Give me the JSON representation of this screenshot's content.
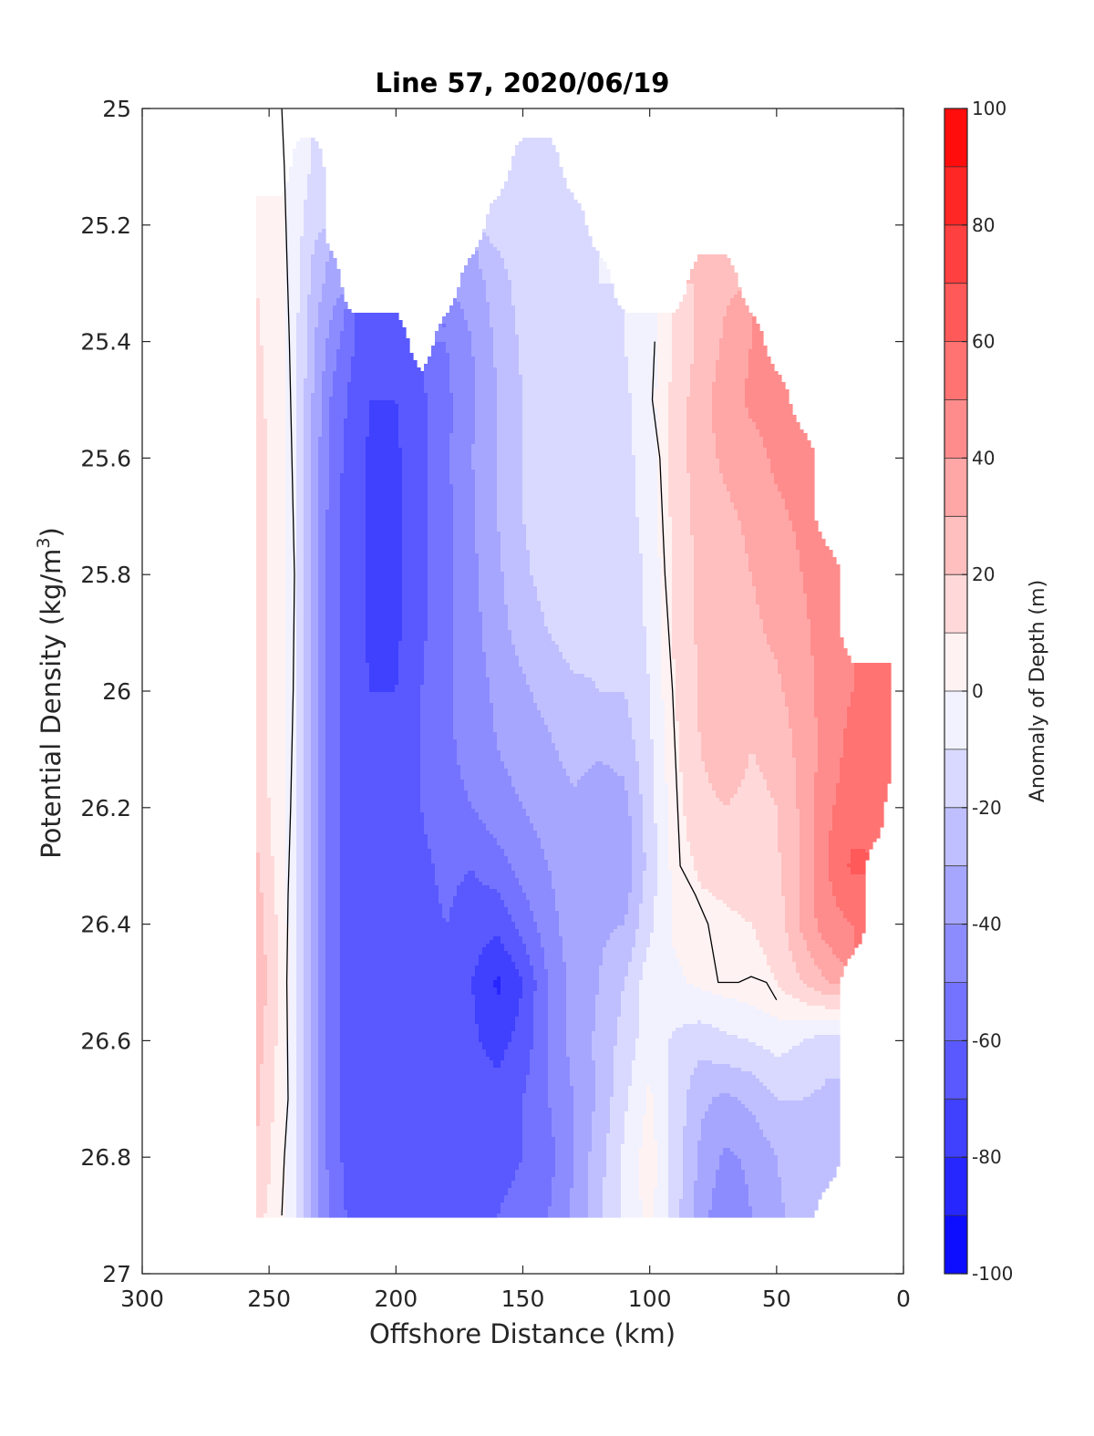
{
  "chart_data": {
    "type": "filled-contour",
    "title": "Line 57, 2020/06/19",
    "xlabel": "Offshore Distance (km)",
    "ylabel_main": "Potential Density (kg/m",
    "ylabel_sup": "3",
    "ylabel_close": ")",
    "colorbar_label": "Anomaly of Depth (m)",
    "xlim": [
      300,
      0
    ],
    "x_reversed": true,
    "ylim": [
      25,
      27
    ],
    "y_reversed": true,
    "xticks": [
      300,
      250,
      200,
      150,
      100,
      50,
      0
    ],
    "yticks": [
      25,
      25.2,
      25.4,
      25.6,
      25.8,
      26,
      26.2,
      26.4,
      26.6,
      26.8,
      27
    ],
    "ytick_labels": [
      "25",
      "25.2",
      "25.4",
      "25.6",
      "25.8",
      "26",
      "26.2",
      "26.4",
      "26.6",
      "26.8",
      "27"
    ],
    "colorbar_range": [
      -100,
      100
    ],
    "colorbar_step": 10,
    "colorbar_ticks": [
      -100,
      -80,
      -60,
      -40,
      -20,
      0,
      20,
      40,
      60,
      80,
      100
    ],
    "colors": {
      "low": "#0000ff",
      "mid": "#ffffff",
      "high": "#ff0000"
    },
    "contour_line_level": 0,
    "grid": false,
    "x_nodes": [
      255,
      245,
      238,
      232,
      225,
      218,
      210,
      200,
      190,
      180,
      170,
      160,
      150,
      140,
      130,
      120,
      110,
      100,
      90,
      80,
      70,
      60,
      50,
      40,
      30,
      20,
      10,
      5
    ],
    "y_nodes": [
      25.0,
      25.1,
      25.2,
      25.3,
      25.4,
      25.5,
      25.6,
      25.7,
      25.8,
      25.9,
      26.0,
      26.1,
      26.2,
      26.3,
      26.4,
      26.5,
      26.6,
      26.7,
      26.8,
      26.9
    ],
    "anomaly_rows": [
      [
        null,
        null,
        null,
        null,
        null,
        null,
        null,
        null,
        null,
        null,
        null,
        null,
        null,
        null,
        null,
        null,
        null,
        null,
        null,
        null,
        null,
        null,
        null,
        null,
        null,
        null,
        null,
        null
      ],
      [
        null,
        null,
        -5,
        -12,
        null,
        null,
        null,
        null,
        null,
        null,
        null,
        null,
        -15,
        -15,
        null,
        null,
        null,
        null,
        null,
        null,
        null,
        null,
        null,
        null,
        null,
        null,
        null,
        null
      ],
      [
        8,
        2,
        -8,
        -18,
        null,
        null,
        null,
        null,
        null,
        null,
        null,
        -16,
        -15,
        -14,
        -12,
        null,
        null,
        null,
        null,
        null,
        null,
        null,
        null,
        null,
        null,
        null,
        null,
        null
      ],
      [
        10,
        2,
        -10,
        -25,
        -35,
        null,
        null,
        null,
        null,
        null,
        -35,
        -25,
        -15,
        -12,
        -10,
        -10,
        null,
        null,
        null,
        20,
        28,
        null,
        null,
        null,
        null,
        null,
        null,
        null
      ],
      [
        12,
        2,
        -12,
        -30,
        -45,
        -58,
        -66,
        -66,
        null,
        -50,
        -40,
        -28,
        -18,
        -14,
        -12,
        -12,
        -10,
        -4,
        12,
        22,
        32,
        40,
        null,
        null,
        null,
        null,
        null,
        null
      ],
      [
        14,
        2,
        -13,
        -33,
        -52,
        -62,
        -70,
        -70,
        -62,
        -52,
        -42,
        -30,
        -20,
        -15,
        -13,
        -13,
        -12,
        -4,
        14,
        26,
        36,
        42,
        44,
        null,
        null,
        null,
        null,
        null
      ],
      [
        15,
        2,
        -13,
        -35,
        -55,
        -64,
        -72,
        -72,
        -62,
        -52,
        -40,
        -30,
        -20,
        -15,
        -13,
        -13,
        -13,
        -5,
        14,
        26,
        32,
        36,
        42,
        44,
        null,
        null,
        null,
        null
      ],
      [
        16,
        2,
        -14,
        -36,
        -56,
        -65,
        -72,
        -73,
        -62,
        -52,
        -42,
        -30,
        -20,
        -14,
        -13,
        -14,
        -14,
        -6,
        14,
        24,
        28,
        32,
        38,
        42,
        null,
        null,
        null,
        null
      ],
      [
        17,
        2,
        -14,
        -36,
        -56,
        -65,
        -72,
        -73,
        -62,
        -52,
        -42,
        -32,
        -22,
        -16,
        -14,
        -16,
        -16,
        -8,
        12,
        22,
        26,
        30,
        34,
        40,
        45,
        null,
        null,
        null
      ],
      [
        17,
        2,
        -14,
        -37,
        -56,
        -65,
        -72,
        -72,
        -62,
        -52,
        -44,
        -34,
        -26,
        -20,
        -16,
        -18,
        -18,
        -8,
        12,
        22,
        26,
        28,
        32,
        38,
        44,
        null,
        null,
        null
      ],
      [
        17,
        2,
        -14,
        -37,
        -56,
        -65,
        -70,
        -70,
        -60,
        -52,
        -45,
        -38,
        -32,
        -26,
        -22,
        -20,
        -20,
        -10,
        10,
        22,
        26,
        24,
        28,
        36,
        44,
        50,
        54,
        52
      ],
      [
        17,
        2,
        -14,
        -37,
        -56,
        -65,
        -68,
        -68,
        -60,
        -52,
        -46,
        -40,
        -36,
        -32,
        -26,
        -28,
        -26,
        -12,
        8,
        20,
        24,
        20,
        22,
        34,
        44,
        54,
        58,
        56
      ],
      [
        18,
        2,
        -14,
        -37,
        -56,
        -65,
        -66,
        -66,
        -60,
        -54,
        -50,
        -44,
        -40,
        -36,
        -32,
        -38,
        -34,
        -14,
        6,
        18,
        20,
        18,
        20,
        32,
        48,
        56,
        58,
        null
      ],
      [
        22,
        4,
        -14,
        -37,
        -56,
        -65,
        -66,
        -66,
        -62,
        -58,
        -60,
        -54,
        -46,
        -40,
        -34,
        -36,
        -38,
        -16,
        4,
        12,
        14,
        16,
        18,
        32,
        50,
        62,
        null,
        null
      ],
      [
        26,
        6,
        -14,
        -37,
        -56,
        -65,
        -66,
        -66,
        -62,
        -60,
        -64,
        -68,
        -56,
        -44,
        -34,
        -32,
        -30,
        -12,
        2,
        6,
        8,
        10,
        14,
        32,
        46,
        50,
        null,
        null
      ],
      [
        28,
        8,
        -14,
        -37,
        -56,
        -65,
        -66,
        -64,
        -60,
        -62,
        -70,
        -82,
        -70,
        -50,
        -36,
        -30,
        -20,
        -4,
        -2,
        2,
        4,
        6,
        10,
        20,
        30,
        null,
        null,
        null
      ],
      [
        25,
        6,
        -14,
        -37,
        -56,
        -65,
        -66,
        -66,
        -62,
        -62,
        -68,
        -74,
        -66,
        -50,
        -36,
        -28,
        -16,
        -4,
        -12,
        -16,
        -12,
        -10,
        -6,
        -10,
        -16,
        null,
        null,
        null
      ],
      [
        22,
        4,
        -14,
        -37,
        -56,
        -65,
        -68,
        -68,
        -64,
        -62,
        -64,
        -66,
        -60,
        -50,
        -40,
        -28,
        -12,
        2,
        -14,
        -28,
        -32,
        -28,
        -20,
        -20,
        -22,
        null,
        null,
        null
      ],
      [
        20,
        3,
        -14,
        -37,
        -56,
        -64,
        -66,
        -68,
        -66,
        -64,
        -64,
        -64,
        -60,
        -54,
        -40,
        -24,
        -8,
        5,
        -14,
        -32,
        -42,
        -38,
        -30,
        -24,
        -24,
        null,
        null,
        null
      ],
      [
        14,
        2,
        -14,
        -35,
        -54,
        -62,
        -64,
        -64,
        -64,
        -62,
        -62,
        -60,
        -56,
        -50,
        -38,
        -22,
        -8,
        4,
        -16,
        -36,
        -48,
        -40,
        -32,
        -26,
        null,
        null,
        null,
        null
      ]
    ],
    "zero_contour": [
      [
        245,
        25.0
      ],
      [
        244,
        25.1
      ],
      [
        243,
        25.25
      ],
      [
        242,
        25.4
      ],
      [
        241,
        25.6
      ],
      [
        240,
        25.8
      ],
      [
        240.5,
        26.0
      ],
      [
        241.5,
        26.2
      ],
      [
        242.5,
        26.35
      ],
      [
        243,
        26.5
      ],
      [
        242.5,
        26.7
      ],
      [
        244,
        26.8
      ],
      [
        245,
        26.9
      ]
    ],
    "zero_contour_2": [
      [
        98,
        25.4
      ],
      [
        99,
        25.5
      ],
      [
        96,
        25.6
      ],
      [
        94,
        25.8
      ],
      [
        91,
        26.0
      ],
      [
        89,
        26.2
      ],
      [
        88,
        26.3
      ],
      [
        82,
        26.35
      ],
      [
        77,
        26.4
      ],
      [
        73,
        26.5
      ],
      [
        71,
        26.5
      ],
      [
        65,
        26.5
      ],
      [
        60,
        26.49
      ],
      [
        54,
        26.5
      ],
      [
        50,
        26.53
      ]
    ]
  }
}
